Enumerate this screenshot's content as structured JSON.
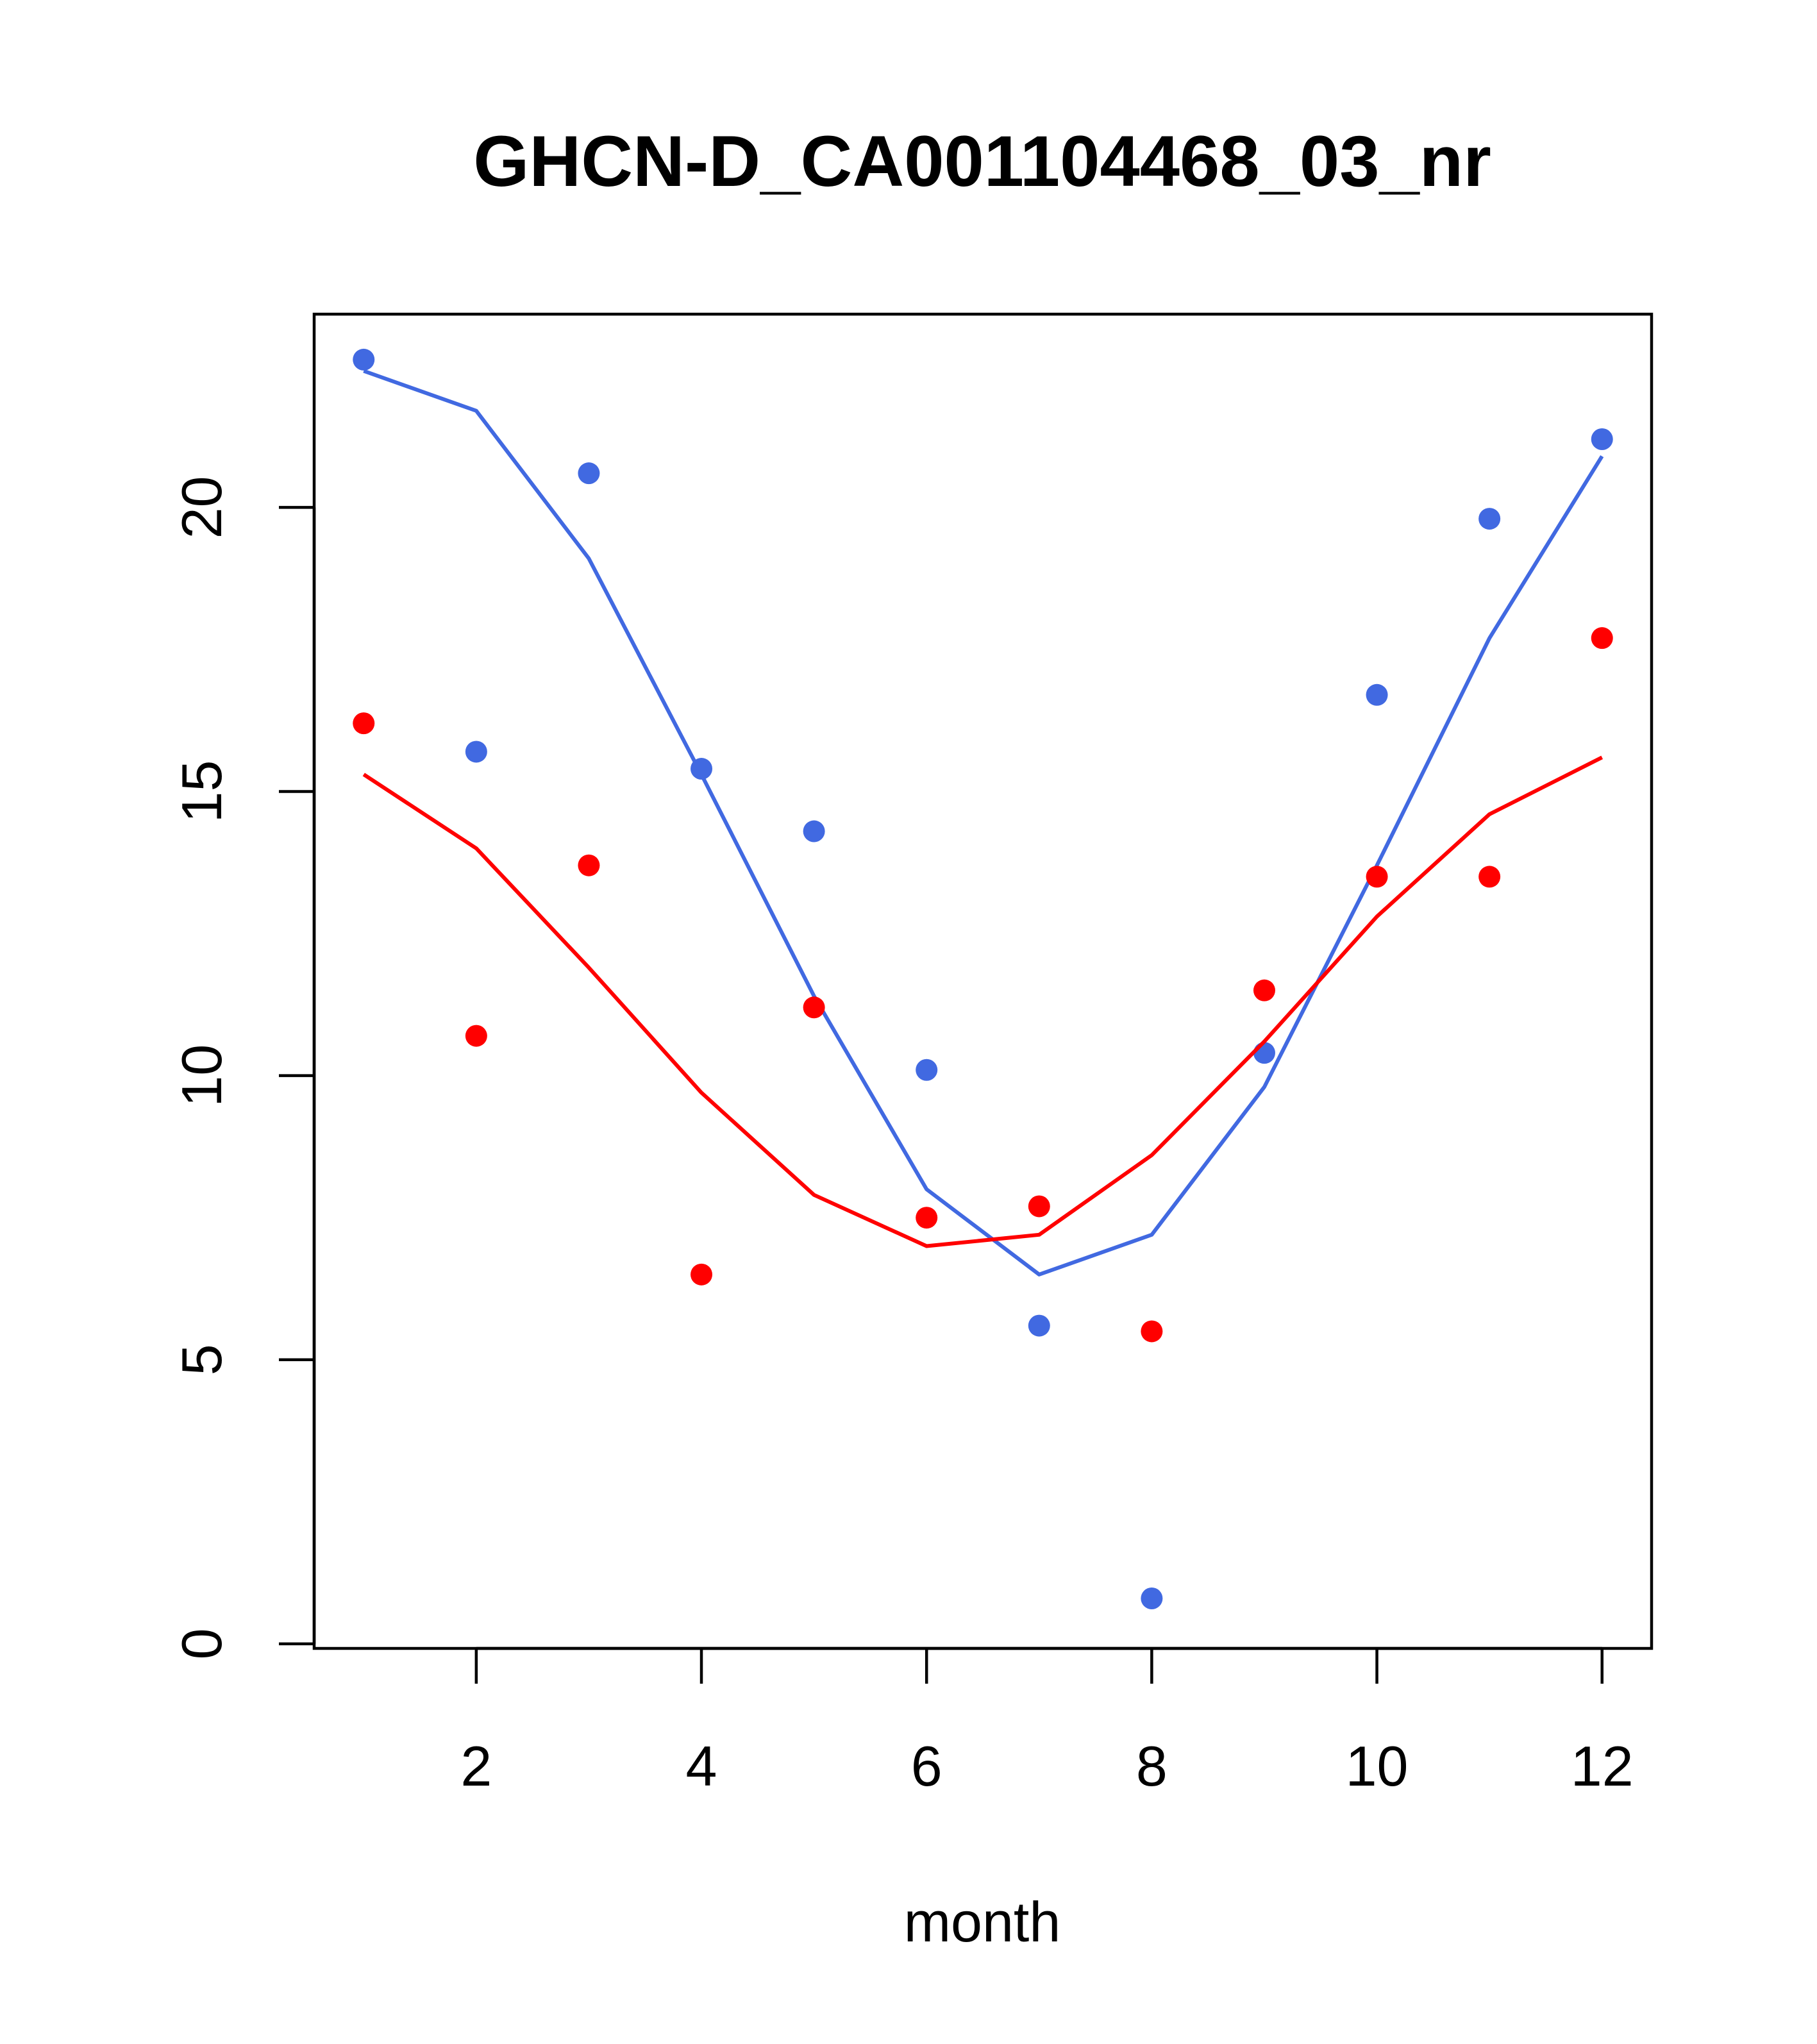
{
  "chart_data": {
    "type": "line",
    "title": "GHCN-D_CA001104468_03_nr",
    "xlabel": "month",
    "ylabel": "",
    "xlim": [
      0.56,
      12.44
    ],
    "ylim": [
      -0.08,
      23.4
    ],
    "xticks": [
      2,
      4,
      6,
      8,
      10,
      12
    ],
    "yticks": [
      0,
      5,
      10,
      15,
      20
    ],
    "grid": false,
    "legend": "none",
    "series": [
      {
        "color": "#4169E1",
        "points": [
          {
            "x": 1,
            "y": 22.6
          },
          {
            "x": 2,
            "y": 15.7
          },
          {
            "x": 3,
            "y": 20.6
          },
          {
            "x": 4,
            "y": 15.4
          },
          {
            "x": 5,
            "y": 14.3
          },
          {
            "x": 6,
            "y": 10.1
          },
          {
            "x": 7,
            "y": 5.6
          },
          {
            "x": 8,
            "y": 0.8
          },
          {
            "x": 9,
            "y": 10.4
          },
          {
            "x": 10,
            "y": 16.7
          },
          {
            "x": 11,
            "y": 19.8
          },
          {
            "x": 12,
            "y": 21.2
          }
        ],
        "fit": [
          {
            "x": 1,
            "y": 22.4
          },
          {
            "x": 2,
            "y": 21.7
          },
          {
            "x": 3,
            "y": 19.1
          },
          {
            "x": 4,
            "y": 15.3
          },
          {
            "x": 5,
            "y": 11.4
          },
          {
            "x": 6,
            "y": 8.0
          },
          {
            "x": 7,
            "y": 6.5
          },
          {
            "x": 8,
            "y": 7.2
          },
          {
            "x": 9,
            "y": 9.8
          },
          {
            "x": 10,
            "y": 13.7
          },
          {
            "x": 11,
            "y": 17.7
          },
          {
            "x": 12,
            "y": 20.9
          }
        ]
      },
      {
        "color": "#FF0000",
        "points": [
          {
            "x": 1,
            "y": 16.2
          },
          {
            "x": 2,
            "y": 10.7
          },
          {
            "x": 3,
            "y": 13.7
          },
          {
            "x": 4,
            "y": 6.5
          },
          {
            "x": 5,
            "y": 11.2
          },
          {
            "x": 6,
            "y": 7.5
          },
          {
            "x": 7,
            "y": 7.7
          },
          {
            "x": 8,
            "y": 5.5
          },
          {
            "x": 9,
            "y": 11.5
          },
          {
            "x": 10,
            "y": 13.5
          },
          {
            "x": 11,
            "y": 13.5
          },
          {
            "x": 12,
            "y": 17.7
          }
        ],
        "fit": [
          {
            "x": 1,
            "y": 15.3
          },
          {
            "x": 2,
            "y": 14.0
          },
          {
            "x": 3,
            "y": 11.9
          },
          {
            "x": 4,
            "y": 9.7
          },
          {
            "x": 5,
            "y": 7.9
          },
          {
            "x": 6,
            "y": 7.0
          },
          {
            "x": 7,
            "y": 7.2
          },
          {
            "x": 8,
            "y": 8.6
          },
          {
            "x": 9,
            "y": 10.6
          },
          {
            "x": 10,
            "y": 12.8
          },
          {
            "x": 11,
            "y": 14.6
          },
          {
            "x": 12,
            "y": 15.6
          }
        ]
      }
    ]
  }
}
